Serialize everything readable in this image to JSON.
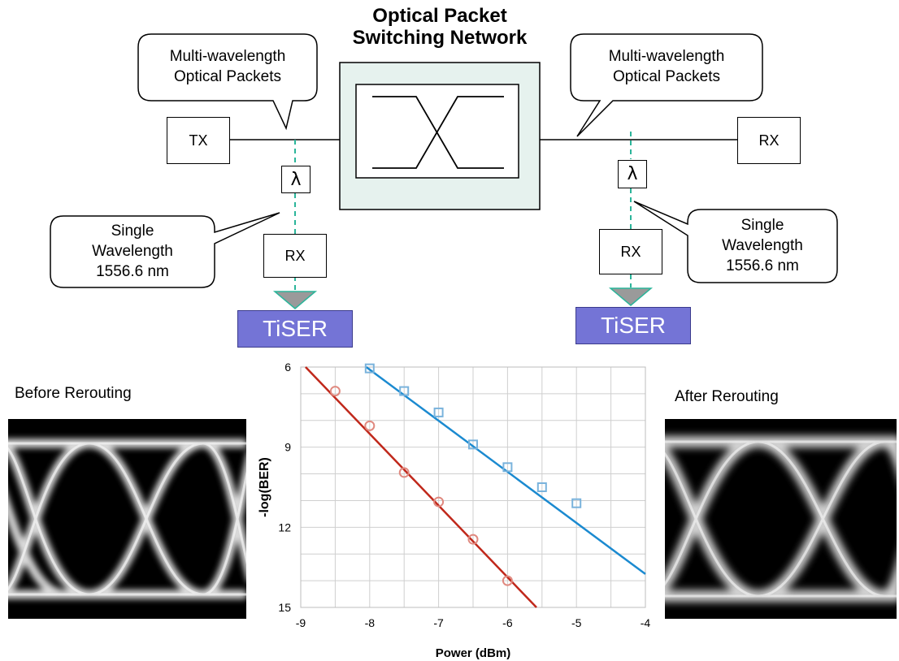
{
  "title": {
    "line1": "Optical Packet",
    "line2": "Switching Network"
  },
  "callouts": {
    "left_packets": {
      "line1": "Multi-wavelength",
      "line2": "Optical Packets"
    },
    "right_packets": {
      "line1": "Multi-wavelength",
      "line2": "Optical Packets"
    },
    "left_single": {
      "line1": "Single",
      "line2": "Wavelength",
      "line3": "1556.6 nm"
    },
    "right_single": {
      "line1": "Single",
      "line2": "Wavelength",
      "line3": "1556.6 nm"
    }
  },
  "boxes": {
    "tx": "TX",
    "rx_right": "RX",
    "rx_left_drop": "RX",
    "rx_right_drop": "RX",
    "filter_symbol": "λ"
  },
  "tiser": {
    "left": "TiSER",
    "right": "TiSER"
  },
  "eye_labels": {
    "before": "Before Rerouting",
    "after": "After Rerouting"
  },
  "colors": {
    "switch_fill": "#e6f2ee",
    "dashed_drop": "#2bb59a",
    "tiser_fill": "#7474d6",
    "series_red": "#c0281b",
    "series_blue": "#1b8ad0",
    "triangle": "#9a9a9a"
  },
  "chart_data": {
    "type": "scatter",
    "xlabel": "Power (dBm)",
    "ylabel": "-log(BER)",
    "xlim": [
      -9,
      -4
    ],
    "ylim": [
      6,
      15
    ],
    "y_inverted": true,
    "x_ticks": [
      "-9",
      "-8",
      "-7",
      "-6",
      "-5",
      "-4"
    ],
    "y_ticks": [
      "6",
      "9",
      "12",
      "15"
    ],
    "grid": true,
    "series": [
      {
        "color": "#c0281b",
        "marker": "circle",
        "points": [
          [
            -8.5,
            6.9
          ],
          [
            -8.0,
            8.2
          ],
          [
            -7.5,
            9.95
          ],
          [
            -7.0,
            11.05
          ],
          [
            -6.5,
            12.45
          ],
          [
            -6.0,
            14.0
          ]
        ],
        "fit": [
          [
            -8.93,
            6.0
          ],
          [
            -5.58,
            15.0
          ]
        ]
      },
      {
        "color": "#1b8ad0",
        "marker": "square",
        "points": [
          [
            -8.0,
            6.05
          ],
          [
            -7.5,
            6.9
          ],
          [
            -7.0,
            7.7
          ],
          [
            -6.5,
            8.9
          ],
          [
            -6.0,
            9.75
          ],
          [
            -5.5,
            10.5
          ],
          [
            -5.0,
            11.1
          ]
        ],
        "fit": [
          [
            -8.05,
            6.0
          ],
          [
            -4.0,
            13.75
          ]
        ]
      }
    ]
  }
}
